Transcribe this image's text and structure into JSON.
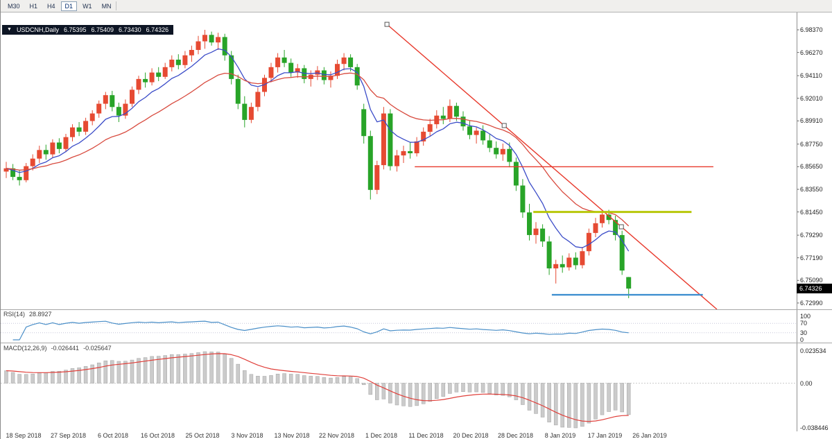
{
  "toolbar": {
    "timeframes": [
      "M30",
      "H1",
      "H4",
      "D1",
      "W1",
      "MN"
    ],
    "active": "D1"
  },
  "icons": {
    "dropdown_marker": "▼"
  },
  "chart": {
    "title_badge": {
      "symbol": "USDCNH,Daily",
      "open": "6.75395",
      "high": "6.75409",
      "low": "6.73430",
      "close": "6.74326"
    },
    "price_axis_ticks": [
      "6.98370",
      "6.96270",
      "6.94110",
      "6.92010",
      "6.89910",
      "6.87750",
      "6.85650",
      "6.83550",
      "6.81450",
      "6.79290",
      "6.77190",
      "6.75090",
      "6.72990"
    ],
    "current_price_badge": "6.74326"
  },
  "rsi_panel": {
    "label": "RSI(14)",
    "value": "28.8927",
    "axis_labels": [
      "100",
      "70",
      "30",
      "0"
    ],
    "levels": [
      70,
      30
    ]
  },
  "macd_panel": {
    "label": "MACD(12,26,9)",
    "value_macd": "-0.026441",
    "value_signal": "-0.025647",
    "axis_max": "0.023534",
    "axis_zero": "0.00",
    "axis_min": "-0.038446"
  },
  "time_axis": {
    "labels": [
      "18 Sep 2018",
      "27 Sep 2018",
      "6 Oct 2018",
      "16 Oct 2018",
      "25 Oct 2018",
      "3 Nov 2018",
      "13 Nov 2018",
      "22 Nov 2018",
      "1 Dec 2018",
      "11 Dec 2018",
      "20 Dec 2018",
      "28 Dec 2018",
      "8 Jan 2019",
      "17 Jan 2019",
      "26 Jan 2019"
    ]
  },
  "chart_data": {
    "type": "candlestick",
    "symbol": "USDCNH",
    "timeframe": "Daily",
    "x_range": [
      "18 Sep 2018",
      "28 Jan 2019"
    ],
    "y_axis": {
      "min": 6.7299,
      "max": 6.9837,
      "tick_step": 0.021
    },
    "last_bar": {
      "open": 6.75395,
      "high": 6.75409,
      "low": 6.7343,
      "close": 6.74326
    },
    "indicators": {
      "rsi_period": 14,
      "rsi_current": 28.8927,
      "macd_periods": [
        12,
        26,
        9
      ],
      "macd_current": -0.026441,
      "macd_signal_current": -0.025647
    },
    "candles": [
      [
        6.852,
        6.861,
        6.846,
        6.855
      ],
      [
        6.855,
        6.859,
        6.844,
        6.847
      ],
      [
        6.847,
        6.853,
        6.839,
        6.844
      ],
      [
        6.844,
        6.86,
        6.842,
        6.857
      ],
      [
        6.857,
        6.868,
        6.853,
        6.864
      ],
      [
        6.864,
        6.876,
        6.86,
        6.872
      ],
      [
        6.872,
        6.877,
        6.863,
        6.868
      ],
      [
        6.868,
        6.882,
        6.865,
        6.879
      ],
      [
        6.879,
        6.883,
        6.869,
        6.873
      ],
      [
        6.873,
        6.887,
        6.87,
        6.884
      ],
      [
        6.884,
        6.896,
        6.88,
        6.893
      ],
      [
        6.893,
        6.898,
        6.885,
        6.889
      ],
      [
        6.889,
        6.902,
        6.886,
        6.899
      ],
      [
        6.899,
        6.909,
        6.895,
        6.906
      ],
      [
        6.906,
        6.918,
        6.902,
        6.915
      ],
      [
        6.915,
        6.926,
        6.91,
        6.923
      ],
      [
        6.923,
        6.927,
        6.908,
        6.912
      ],
      [
        6.912,
        6.916,
        6.898,
        6.904
      ],
      [
        6.904,
        6.919,
        6.901,
        6.915
      ],
      [
        6.915,
        6.931,
        6.912,
        6.928
      ],
      [
        6.928,
        6.941,
        6.924,
        6.938
      ],
      [
        6.938,
        6.944,
        6.93,
        6.935
      ],
      [
        6.935,
        6.948,
        6.932,
        6.944
      ],
      [
        6.944,
        6.949,
        6.936,
        6.94
      ],
      [
        6.94,
        6.953,
        6.938,
        6.949
      ],
      [
        6.949,
        6.96,
        6.945,
        6.956
      ],
      [
        6.956,
        6.961,
        6.947,
        6.951
      ],
      [
        6.951,
        6.964,
        6.948,
        6.96
      ],
      [
        6.96,
        6.969,
        6.954,
        6.965
      ],
      [
        6.965,
        6.978,
        6.961,
        6.973
      ],
      [
        6.973,
        6.9837,
        6.966,
        6.979
      ],
      [
        6.979,
        6.982,
        6.969,
        6.972
      ],
      [
        6.972,
        6.981,
        6.965,
        6.977
      ],
      [
        6.977,
        6.98,
        6.955,
        6.96
      ],
      [
        6.96,
        6.964,
        6.933,
        6.938
      ],
      [
        6.938,
        6.942,
        6.91,
        6.915
      ],
      [
        6.915,
        6.922,
        6.893,
        6.9
      ],
      [
        6.9,
        6.916,
        6.897,
        6.912
      ],
      [
        6.912,
        6.93,
        6.908,
        6.926
      ],
      [
        6.926,
        6.942,
        6.922,
        6.939
      ],
      [
        6.939,
        6.953,
        6.935,
        6.949
      ],
      [
        6.949,
        6.962,
        6.944,
        6.958
      ],
      [
        6.958,
        6.965,
        6.949,
        6.953
      ],
      [
        6.953,
        6.957,
        6.94,
        6.944
      ],
      [
        6.944,
        6.952,
        6.939,
        6.948
      ],
      [
        6.948,
        6.951,
        6.934,
        6.938
      ],
      [
        6.938,
        6.946,
        6.931,
        6.942
      ],
      [
        6.942,
        6.95,
        6.937,
        6.946
      ],
      [
        6.946,
        6.949,
        6.933,
        6.937
      ],
      [
        6.937,
        6.945,
        6.93,
        6.941
      ],
      [
        6.941,
        6.956,
        6.938,
        6.952
      ],
      [
        6.952,
        6.962,
        6.946,
        6.958
      ],
      [
        6.958,
        6.961,
        6.945,
        6.949
      ],
      [
        6.949,
        6.952,
        6.928,
        6.932
      ],
      [
        6.91,
        6.915,
        6.878,
        6.885
      ],
      [
        6.885,
        6.89,
        6.826,
        6.835
      ],
      [
        6.835,
        6.862,
        6.831,
        6.858
      ],
      [
        6.858,
        6.912,
        6.854,
        6.906
      ],
      [
        6.906,
        6.91,
        6.853,
        6.857
      ],
      [
        6.857,
        6.872,
        6.852,
        6.867
      ],
      [
        6.867,
        6.876,
        6.86,
        6.871
      ],
      [
        6.871,
        6.879,
        6.864,
        6.869
      ],
      [
        6.869,
        6.884,
        6.866,
        6.88
      ],
      [
        6.88,
        6.893,
        6.876,
        6.889
      ],
      [
        6.889,
        6.901,
        6.885,
        6.896
      ],
      [
        6.896,
        6.909,
        6.892,
        6.904
      ],
      [
        6.904,
        6.912,
        6.896,
        6.901
      ],
      [
        6.901,
        6.919,
        6.898,
        6.913
      ],
      [
        6.913,
        6.916,
        6.899,
        6.903
      ],
      [
        6.903,
        6.908,
        6.89,
        6.894
      ],
      [
        6.894,
        6.899,
        6.882,
        6.886
      ],
      [
        6.886,
        6.893,
        6.878,
        6.89
      ],
      [
        6.89,
        6.895,
        6.877,
        6.881
      ],
      [
        6.881,
        6.887,
        6.87,
        6.874
      ],
      [
        6.874,
        6.88,
        6.864,
        6.868
      ],
      [
        6.868,
        6.878,
        6.862,
        6.873
      ],
      [
        6.873,
        6.879,
        6.856,
        6.861
      ],
      [
        6.861,
        6.865,
        6.834,
        6.839
      ],
      [
        6.839,
        6.845,
        6.809,
        6.814
      ],
      [
        6.814,
        6.822,
        6.788,
        6.793
      ],
      [
        6.793,
        6.805,
        6.785,
        6.799
      ],
      [
        6.799,
        6.803,
        6.782,
        6.787
      ],
      [
        6.787,
        6.792,
        6.756,
        6.762
      ],
      [
        6.762,
        6.77,
        6.748,
        6.766
      ],
      [
        6.766,
        6.774,
        6.758,
        6.763
      ],
      [
        6.763,
        6.776,
        6.76,
        6.772
      ],
      [
        6.772,
        6.777,
        6.761,
        6.765
      ],
      [
        6.765,
        6.782,
        6.762,
        6.778
      ],
      [
        6.778,
        6.799,
        6.774,
        6.795
      ],
      [
        6.795,
        6.809,
        6.791,
        6.804
      ],
      [
        6.804,
        6.8155,
        6.8,
        6.812
      ],
      [
        6.812,
        6.8165,
        6.803,
        6.807
      ],
      [
        6.807,
        6.811,
        6.788,
        6.793
      ],
      [
        6.793,
        6.797,
        6.756,
        6.76
      ],
      [
        6.75395,
        6.75409,
        6.7343,
        6.74326
      ]
    ],
    "objects": {
      "trendline": {
        "from_bar": 57.5,
        "from_price": 6.9888,
        "to_bar": 92.9,
        "to_price": 6.8007,
        "ray": true,
        "color": "#e8392c"
      },
      "hlines": [
        {
          "price": 6.8565,
          "from_bar": 61.7,
          "to_bar": 106.8,
          "color": "#e8392c",
          "width": 1.4
        },
        {
          "price": 6.8145,
          "from_bar": 79.6,
          "to_bar": 103.5,
          "color": "#b8c709",
          "width": 3
        },
        {
          "price": 6.7375,
          "from_bar": 82.4,
          "to_bar": 105.2,
          "color": "#3e8fd0",
          "width": 2.4
        }
      ]
    },
    "colors": {
      "bull": "#e64a32",
      "bear": "#28a428",
      "ma_fast": "#3b4cc8",
      "ma_slow": "#d84a3e",
      "rsi": "#4a8fc8",
      "macd_bar": "#cbcbcb",
      "macd_bar_border": "#a3a3a3",
      "macd_signal": "#e03f3a",
      "background": "#ffffff"
    }
  }
}
